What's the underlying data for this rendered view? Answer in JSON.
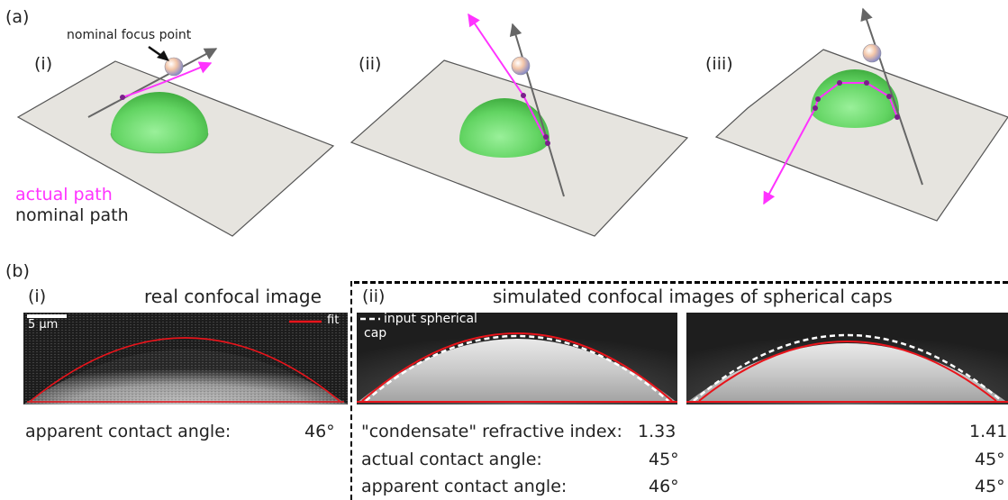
{
  "panel_a": {
    "label": "(a)",
    "subpanels": [
      "(i)",
      "(ii)",
      "(iii)"
    ],
    "focus_label": "nominal focus point",
    "legend_actual": "actual path",
    "legend_nominal": "nominal path"
  },
  "panel_b": {
    "label": "(b)",
    "sub_i": "(i)",
    "sub_ii": "(ii)",
    "title_i": "real confocal image",
    "title_ii": "simulated confocal images of spherical caps",
    "scale_bar": "5 µm",
    "fit_label": "fit",
    "input_cap_line1": "input spherical",
    "input_cap_line2": "cap",
    "apparent_label": "apparent contact angle:",
    "apparent_value": "46°",
    "rows": [
      {
        "label": "\"condensate\" refractive index:",
        "v1": "1.33",
        "v2": "1.41"
      },
      {
        "label": "actual contact angle:",
        "v1": "45°",
        "v2": "45°"
      },
      {
        "label": "apparent contact angle:",
        "v1": "46°",
        "v2": "45°"
      }
    ]
  },
  "colors": {
    "actual_path": "#ff33ff",
    "nominal_path": "#777777",
    "fit": "#e8141b",
    "plane": "#e4e2dd",
    "dome": "#5fd35f"
  }
}
